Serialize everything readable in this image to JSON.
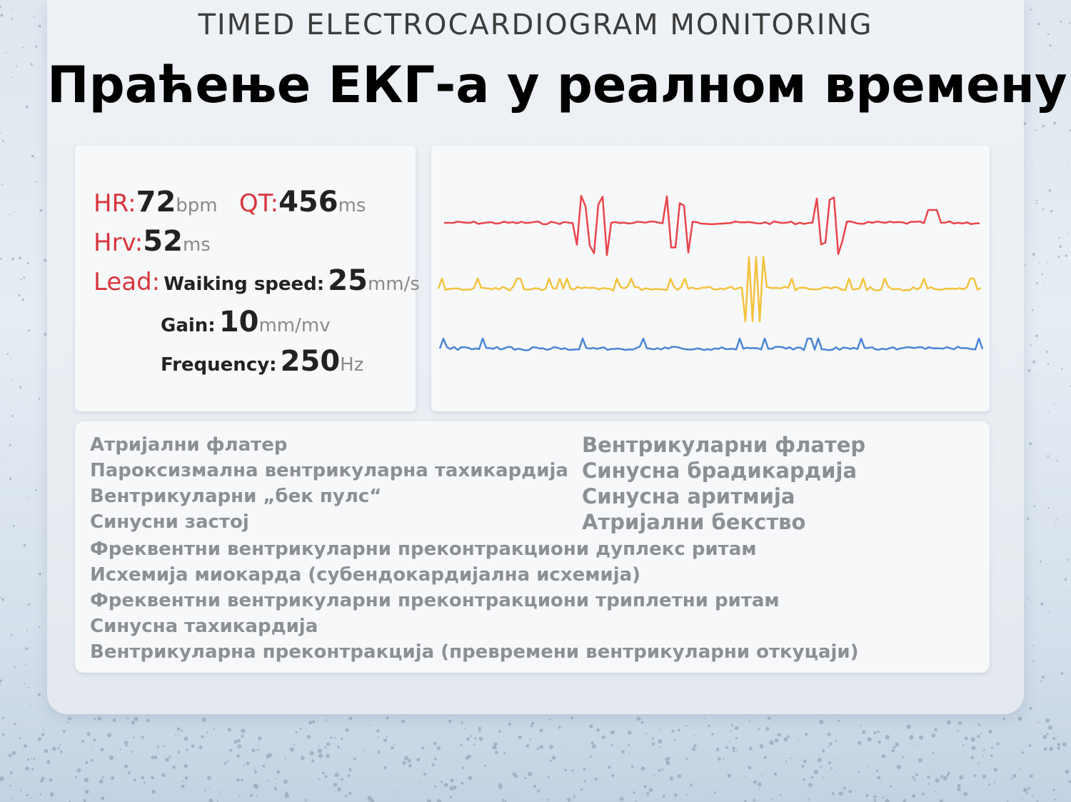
{
  "header": {
    "eyebrow": "TIMED ELECTROCARDIOGRAM MONITORING",
    "title": "Праћење ЕКГ-а у реалном времену"
  },
  "metrics": {
    "hr": {
      "label": "HR:",
      "value": "72",
      "unit": "bpm"
    },
    "qt": {
      "label": "QT:",
      "value": "456",
      "unit": "ms"
    },
    "hrv": {
      "label": "Hrv:",
      "value": "52",
      "unit": "ms"
    },
    "lead": {
      "label": "Lead:"
    },
    "walking_speed": {
      "label": "Waiking speed:",
      "value": "25",
      "unit": "mm/s"
    },
    "gain": {
      "label": "Gain:",
      "value": "10",
      "unit": "mm/mv"
    },
    "frequency": {
      "label": "Frequency:",
      "value": "250",
      "unit": "Hz"
    }
  },
  "waveforms": [
    {
      "color": "#e8454b"
    },
    {
      "color": "#f2c33e"
    },
    {
      "color": "#4a86d4"
    }
  ],
  "conditions": {
    "left": [
      "Атријални флатер",
      "Пароксизмална вентрикуларна тахикардија",
      "Вентрикуларни „бек пулс“",
      "Синусни застој"
    ],
    "right": [
      "Вентрикуларни флатер",
      "Синусна брадикардија",
      "Синусна аритмија",
      "Атријални бекство"
    ],
    "full": [
      "Фреквентни вентрикуларни преконтракциони дуплекс ритам",
      "Исхемија миокарда (субендокардијална исхемија)",
      "Фреквентни вентрикуларни преконтракциони триплетни ритам",
      "Синусна тахикардија",
      "Вентрикуларна преконтракција (превремени вентрикуларни откуцаји)"
    ]
  }
}
